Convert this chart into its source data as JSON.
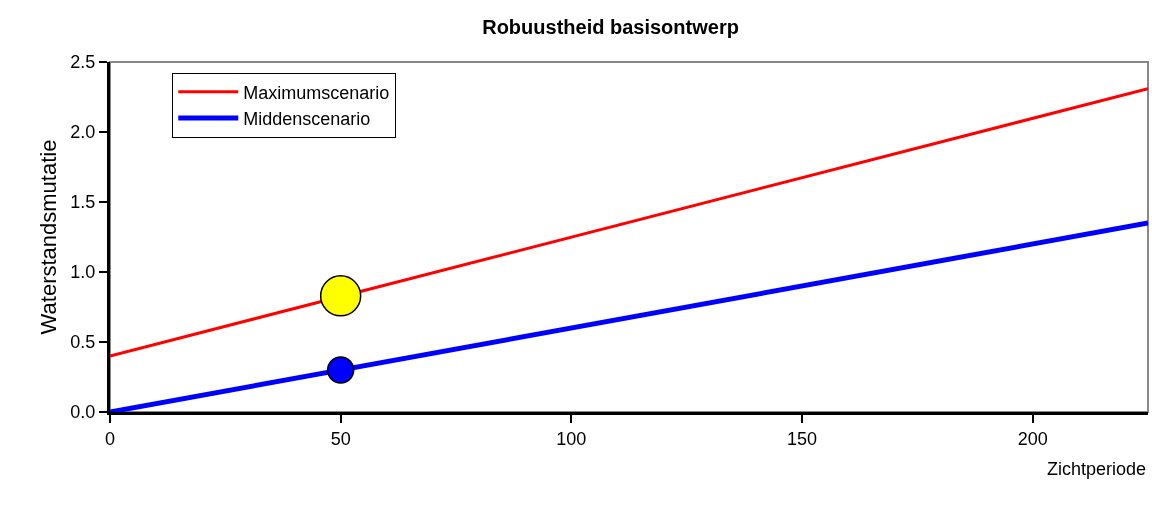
{
  "chart_data": {
    "type": "line",
    "title": "Robuustheid basisontwerp",
    "xlabel": "Zichtperiode",
    "ylabel": "Waterstandsmutatie",
    "xlim": [
      0,
      225
    ],
    "xticks": [
      0,
      50,
      100,
      150,
      200
    ],
    "ylim": [
      0,
      2.5
    ],
    "yticks": [
      {
        "value": 0,
        "label": "0.0"
      },
      {
        "value": 0.5,
        "label": "0.5"
      },
      {
        "value": 1,
        "label": "1.0"
      },
      {
        "value": 1.5,
        "label": "1.5"
      },
      {
        "value": 2,
        "label": "2.0"
      },
      {
        "value": 2.5,
        "label": "2.5"
      }
    ],
    "grid": false,
    "legend": "top left",
    "marker": "none",
    "series": [
      {
        "name": "Maximumscenario",
        "color": "#ff0000",
        "x": [
          0,
          225
        ],
        "values": [
          0.4,
          2.31
        ]
      },
      {
        "name": "Middenscenario",
        "color": "#0000ff",
        "x": [
          0,
          225
        ],
        "values": [
          0,
          1.35
        ]
      },
      {
        "type": "scatter",
        "marker": "circle",
        "color": "#ffff00",
        "x": [
          50
        ],
        "values": [
          0.83
        ]
      },
      {
        "type": "scatter",
        "marker": "circle",
        "color": "#0000ff",
        "x": [
          50
        ],
        "values": [
          0.3
        ]
      }
    ]
  }
}
